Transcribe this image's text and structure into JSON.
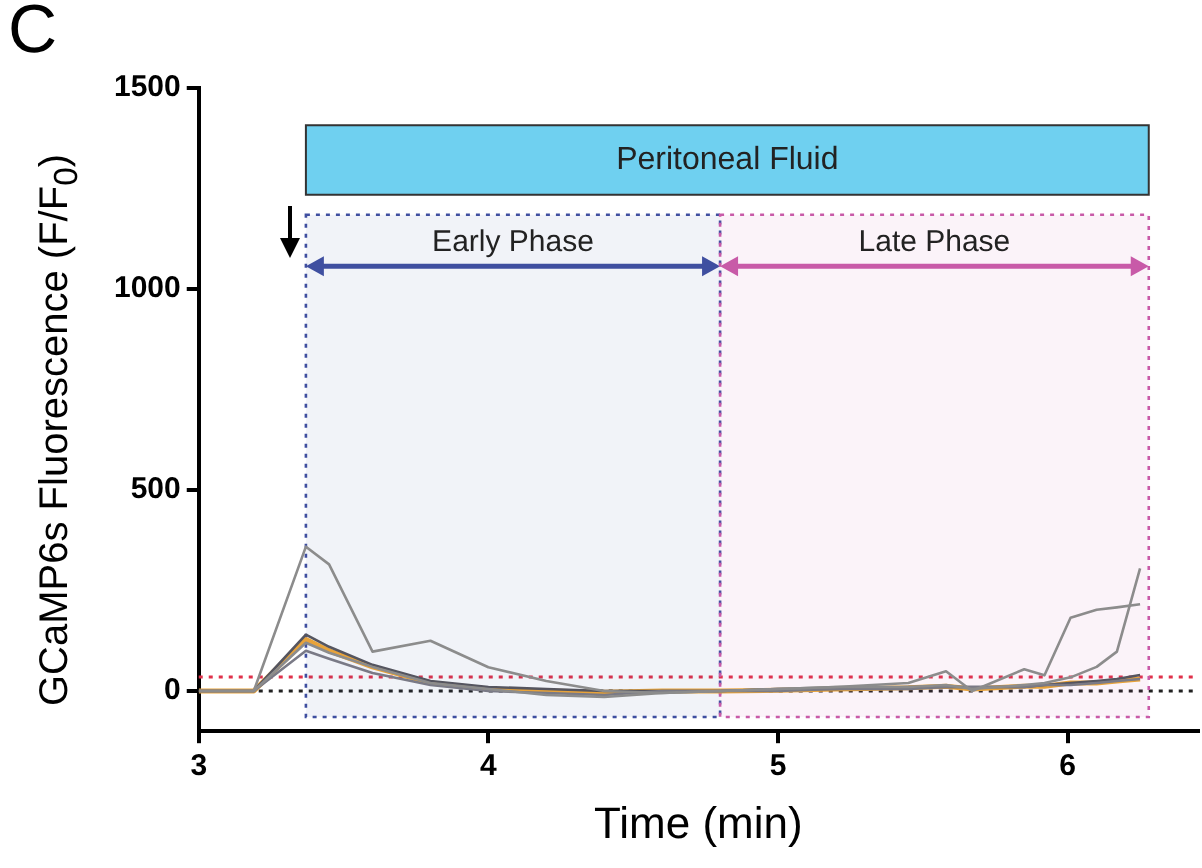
{
  "chart_data": {
    "type": "line",
    "xlabel": "Time (min)",
    "ylabel": "GCaMP6s Fluorescence (F/F$_{0}$)",
    "annotations": [
      "C"
    ],
    "x": [
      3.0,
      3.1,
      3.19,
      3.37,
      3.45,
      3.6,
      3.8,
      4.0,
      4.2,
      4.4,
      4.6,
      4.8,
      5.0,
      5.2,
      5.45,
      5.58,
      5.67,
      5.85,
      5.92,
      6.01,
      6.1,
      6.17,
      6.25
    ],
    "series": [
      {
        "color": "#8c8c8c",
        "values": [
          0,
          0,
          0,
          359,
          315,
          98,
          125,
          59,
          25,
          0,
          -5,
          0,
          5,
          10,
          20,
          49,
          0,
          54,
          39,
          182,
          202,
          208,
          216
        ]
      },
      {
        "color": "#8c8c8c",
        "values": [
          0,
          0,
          0,
          120,
          95,
          60,
          20,
          5,
          -10,
          -15,
          -5,
          0,
          5,
          10,
          10,
          15,
          5,
          15,
          20,
          34,
          60,
          98,
          305
        ]
      },
      {
        "color": "#7a7a86",
        "values": [
          0,
          0,
          0,
          100,
          80,
          45,
          15,
          0,
          -5,
          -10,
          0,
          0,
          0,
          5,
          5,
          10,
          10,
          10,
          15,
          15,
          20,
          25,
          30
        ]
      },
      {
        "color": "#55555f",
        "values": [
          0,
          0,
          0,
          140,
          110,
          65,
          25,
          10,
          5,
          0,
          0,
          0,
          5,
          5,
          10,
          10,
          10,
          10,
          15,
          20,
          25,
          30,
          40
        ]
      },
      {
        "color": "#e8a33a",
        "values": [
          0,
          0,
          0,
          128,
          100,
          60,
          20,
          5,
          0,
          -3,
          0,
          0,
          2,
          5,
          8,
          12,
          5,
          12,
          12,
          20,
          20,
          25,
          30
        ]
      }
    ],
    "xlim": [
      3,
      6.45
    ],
    "xticks": [
      3,
      4,
      5,
      6
    ],
    "ylim": [
      -100,
      1500
    ],
    "yticks": [
      0,
      500,
      1000,
      1500
    ],
    "grid": false,
    "legend": false,
    "marker": "none",
    "line_style": "solid",
    "ref_lines": [
      {
        "axis": "y",
        "value": 0,
        "color": "#222222",
        "line_style": "dotted"
      },
      {
        "axis": "y",
        "value": 35,
        "color": "#e0304a",
        "line_style": "dotted"
      }
    ],
    "bands": [
      {
        "axis": "x",
        "from": 3.37,
        "to": 6.28,
        "label": "Peritoneal Fluid",
        "color": "#6fd0f0"
      },
      {
        "axis": "x",
        "from": 3.37,
        "to": 4.8,
        "label": "Early Phase",
        "color": "#3f4fa0"
      },
      {
        "axis": "x",
        "from": 4.8,
        "to": 6.28,
        "label": "Late Phase",
        "color": "#c85aa8"
      }
    ]
  }
}
